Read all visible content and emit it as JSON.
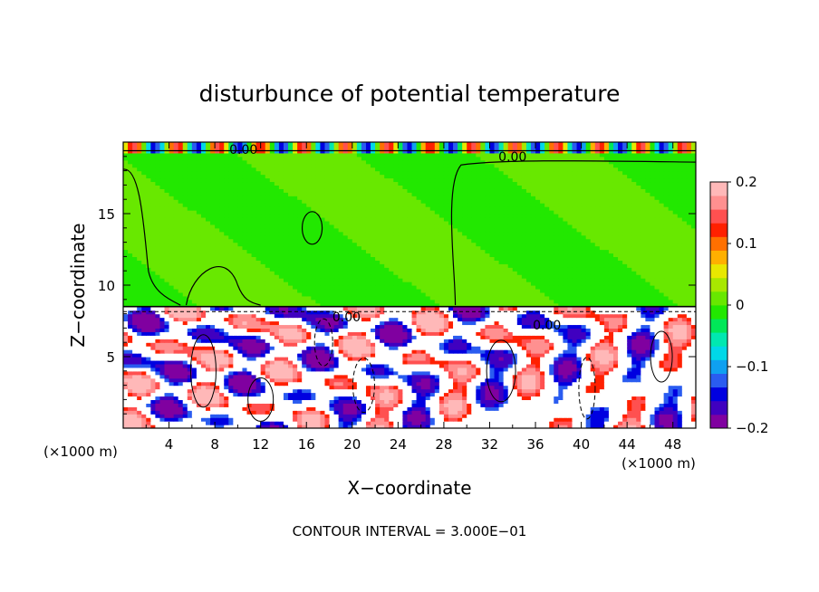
{
  "chart_data": {
    "type": "heatmap",
    "title": "disturbunce of potential temperature",
    "xlabel": "X−coordinate",
    "ylabel": "Z−coordinate",
    "x_unit_left": "(×1000 m)",
    "x_unit_right": "(×1000 m)",
    "xlim": [
      0,
      50
    ],
    "ylim": [
      0,
      20
    ],
    "x_ticks": [
      4,
      8,
      12,
      16,
      20,
      24,
      28,
      32,
      36,
      40,
      44,
      48
    ],
    "y_ticks": [
      5,
      10,
      15
    ],
    "colorbar": {
      "range": [
        -0.2,
        0.2
      ],
      "tick_values": [
        0.2,
        0.1,
        0,
        -0.1,
        -0.2
      ],
      "tick_labels": [
        "0.2",
        "0.1",
        "0",
        "−0.1",
        "−0.2"
      ],
      "colors": [
        "#8000a0",
        "#4000c0",
        "#0000e0",
        "#2a5cf0",
        "#0fa0f0",
        "#00d8e8",
        "#00e8b0",
        "#00e858",
        "#22e800",
        "#68e800",
        "#a8e800",
        "#e8e800",
        "#ffb000",
        "#ff7000",
        "#ff2000",
        "#ff5050",
        "#ff9090",
        "#ffb8b8"
      ]
    },
    "contour_labels": [
      "0.00",
      "0.00",
      "0.00",
      "0.00"
    ],
    "footer": "CONTOUR INTERVAL = 3.000E−01",
    "regions": [
      {
        "z_range": [
          8.5,
          19.5
        ],
        "value": 0.0
      },
      {
        "z_range": [
          0,
          8.5
        ],
        "value": "mixed"
      }
    ]
  }
}
